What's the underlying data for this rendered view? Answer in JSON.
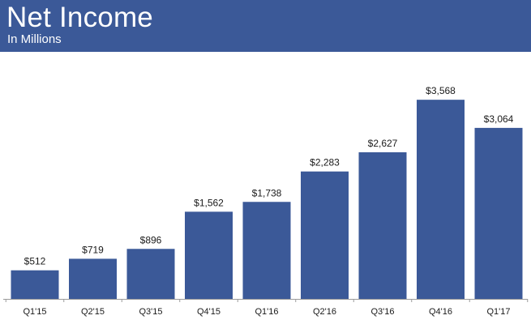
{
  "header": {
    "title": "Net Income",
    "subtitle": "In Millions"
  },
  "colors": {
    "header_bg": "#3b5998",
    "bar": "#3b5998",
    "axis": "#9a9a9a"
  },
  "chart_data": {
    "type": "bar",
    "title": "Net Income",
    "subtitle": "In Millions",
    "xlabel": "",
    "ylabel": "",
    "categories": [
      "Q1'15",
      "Q2'15",
      "Q3'15",
      "Q4'15",
      "Q1'16",
      "Q2'16",
      "Q3'16",
      "Q4'16",
      "Q1'17"
    ],
    "values": [
      512,
      719,
      896,
      1562,
      1738,
      2283,
      2627,
      3568,
      3064
    ],
    "value_labels": [
      "$512",
      "$719",
      "$896",
      "$1,562",
      "$1,738",
      "$2,283",
      "$2,627",
      "$3,568",
      "$3,064"
    ],
    "ylim": [
      0,
      4000
    ],
    "grid": false,
    "legend": "none"
  }
}
